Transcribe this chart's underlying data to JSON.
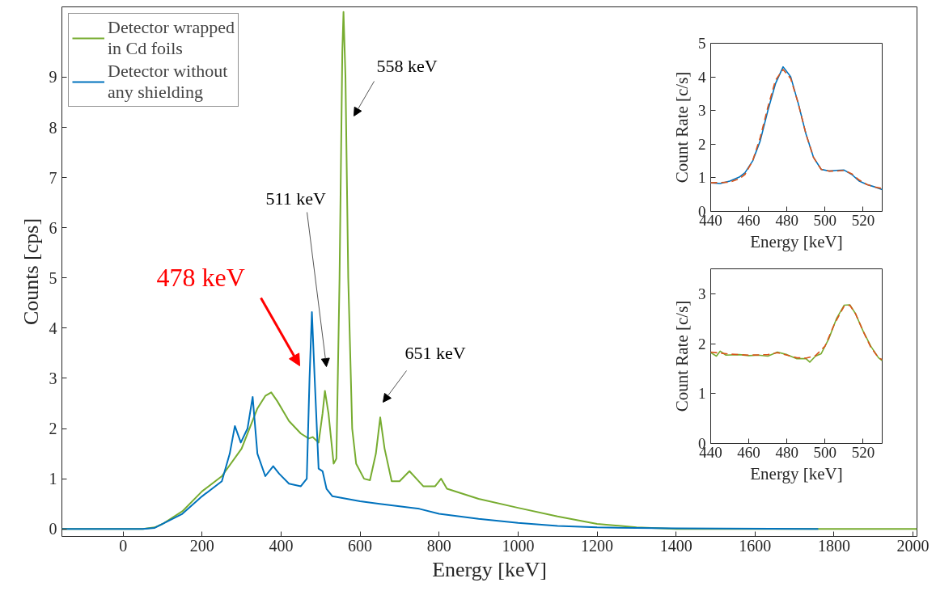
{
  "chart_data": [
    {
      "type": "line",
      "xlabel": "Energy [keV]",
      "ylabel": "Counts [cps]",
      "xlim": [
        -155,
        2010
      ],
      "ylim": [
        -0.15,
        10.4
      ],
      "xticks": [
        0,
        200,
        400,
        600,
        800,
        1000,
        1200,
        1400,
        1600,
        1800,
        2000
      ],
      "yticks": [
        0,
        1,
        2,
        3,
        4,
        5,
        6,
        7,
        8,
        9
      ],
      "grid": false,
      "legend": "top left",
      "series": [
        {
          "name": "Detector wrapped in Cd foils",
          "color": "#77ac30",
          "x": [
            -155,
            50,
            80,
            100,
            150,
            200,
            250,
            300,
            340,
            360,
            375,
            390,
            420,
            450,
            470,
            480,
            495,
            505,
            511,
            520,
            533,
            540,
            548,
            555,
            558,
            563,
            570,
            580,
            590,
            610,
            625,
            640,
            651,
            662,
            680,
            700,
            725,
            760,
            790,
            805,
            820,
            900,
            1000,
            1100,
            1200,
            1300,
            1400,
            2010
          ],
          "values": [
            0,
            0,
            0.03,
            0.1,
            0.35,
            0.75,
            1.05,
            1.6,
            2.4,
            2.65,
            2.72,
            2.55,
            2.15,
            1.9,
            1.8,
            1.83,
            1.72,
            2.3,
            2.75,
            2.3,
            1.3,
            1.4,
            5,
            9.5,
            10.3,
            9,
            5,
            2,
            1.3,
            1.0,
            0.97,
            1.5,
            2.22,
            1.6,
            0.95,
            0.95,
            1.15,
            0.85,
            0.85,
            1.0,
            0.8,
            0.6,
            0.42,
            0.25,
            0.1,
            0.03,
            0,
            0
          ]
        },
        {
          "name": "Detector without any shielding",
          "color": "#0072bd",
          "x": [
            -155,
            50,
            80,
            150,
            200,
            250,
            270,
            283,
            298,
            315,
            328,
            340,
            360,
            380,
            395,
            420,
            450,
            465,
            472,
            478,
            485,
            495,
            505,
            515,
            530,
            600,
            650,
            700,
            750,
            800,
            900,
            1000,
            1100,
            1200,
            1400,
            1760
          ],
          "values": [
            0,
            0,
            0.02,
            0.3,
            0.65,
            0.95,
            1.5,
            2.05,
            1.72,
            2.0,
            2.63,
            1.5,
            1.05,
            1.25,
            1.1,
            0.9,
            0.85,
            1.0,
            3,
            4.32,
            3.0,
            1.2,
            1.15,
            0.8,
            0.65,
            0.55,
            0.5,
            0.45,
            0.4,
            0.3,
            0.2,
            0.12,
            0.06,
            0.03,
            0.01,
            0
          ]
        }
      ],
      "annotations": [
        "558 keV",
        "511 keV",
        "651 keV",
        "478 keV"
      ]
    },
    {
      "type": "line",
      "xlabel": "Energy [keV]",
      "ylabel": "Count Rate [c/s]",
      "xlim": [
        440,
        530
      ],
      "ylim": [
        0,
        5
      ],
      "xticks": [
        440,
        460,
        480,
        500,
        520
      ],
      "yticks": [
        0,
        1,
        2,
        3,
        4,
        5
      ],
      "grid": false,
      "series": [
        {
          "color": "#0072bd",
          "x": [
            440,
            445,
            450,
            455,
            458,
            462,
            466,
            470,
            474,
            478,
            482,
            486,
            490,
            494,
            498,
            502,
            506,
            510,
            514,
            518,
            522,
            526,
            530
          ],
          "values": [
            0.85,
            0.83,
            0.9,
            1.02,
            1.15,
            1.5,
            2.1,
            3.0,
            3.8,
            4.3,
            4.0,
            3.2,
            2.3,
            1.6,
            1.25,
            1.2,
            1.22,
            1.23,
            1.1,
            0.9,
            0.8,
            0.73,
            0.65
          ]
        },
        {
          "color": "#d95319",
          "line_style": "dashed",
          "x": [
            440,
            450,
            455,
            458,
            462,
            466,
            470,
            474,
            478,
            482,
            486,
            490,
            494,
            498,
            502,
            506,
            510,
            514,
            518,
            522,
            526,
            530
          ],
          "values": [
            0.85,
            0.87,
            0.97,
            1.1,
            1.5,
            2.2,
            3.1,
            3.9,
            4.22,
            3.95,
            3.2,
            2.3,
            1.6,
            1.25,
            1.2,
            1.2,
            1.22,
            1.12,
            0.93,
            0.8,
            0.73,
            0.68
          ]
        }
      ]
    },
    {
      "type": "line",
      "xlabel": "Energy [keV]",
      "ylabel": "Count Rate [c/s]",
      "xlim": [
        440,
        530
      ],
      "ylim": [
        0,
        3.5
      ],
      "xticks": [
        440,
        460,
        480,
        500,
        520
      ],
      "yticks": [
        0,
        1,
        2,
        3
      ],
      "grid": false,
      "series": [
        {
          "color": "#77ac30",
          "x": [
            440,
            443,
            445,
            448,
            455,
            460,
            465,
            470,
            475,
            480,
            485,
            490,
            492,
            495,
            498,
            502,
            506,
            510,
            513,
            516,
            520,
            524,
            528,
            530
          ],
          "values": [
            1.82,
            1.75,
            1.85,
            1.77,
            1.78,
            1.76,
            1.77,
            1.75,
            1.83,
            1.78,
            1.7,
            1.7,
            1.63,
            1.75,
            1.8,
            2.1,
            2.5,
            2.77,
            2.78,
            2.6,
            2.25,
            1.95,
            1.72,
            1.66
          ]
        },
        {
          "color": "#d95319",
          "line_style": "dashed",
          "x": [
            440,
            450,
            460,
            470,
            475,
            480,
            485,
            490,
            495,
            500,
            505,
            510,
            513,
            516,
            520,
            524,
            528,
            530
          ],
          "values": [
            1.83,
            1.79,
            1.77,
            1.78,
            1.82,
            1.77,
            1.72,
            1.71,
            1.76,
            1.95,
            2.4,
            2.75,
            2.77,
            2.6,
            2.25,
            1.93,
            1.72,
            1.68
          ]
        }
      ]
    }
  ]
}
